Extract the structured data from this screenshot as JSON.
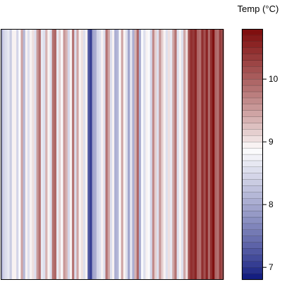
{
  "chart_data": {
    "type": "heatmap",
    "title": "",
    "xlabel": "",
    "ylabel": "",
    "legend_title": "Temp (°C)",
    "legend_placement": "right",
    "color_scale": {
      "min": 6.8,
      "max": 10.8,
      "levels": 40,
      "low_color": "#08127a",
      "mid_color": "#ffffff",
      "high_color": "#7d0a0a",
      "mid_value": 8.9
    },
    "colorbar_ticks": [
      {
        "value": 7,
        "label": "7"
      },
      {
        "value": 8,
        "label": "8"
      },
      {
        "value": 9,
        "label": "9"
      },
      {
        "value": 10,
        "label": "10"
      }
    ],
    "stripe_values": [
      8.0,
      8.4,
      8.6,
      8.7,
      8.3,
      8.9,
      9.0,
      8.4,
      8.8,
      9.4,
      8.2,
      9.0,
      8.6,
      8.9,
      9.1,
      8.5,
      9.6,
      9.8,
      8.7,
      8.5,
      9.3,
      9.0,
      8.6,
      9.8,
      10.0,
      8.7,
      9.2,
      8.8,
      9.6,
      9.3,
      8.4,
      9.0,
      9.8,
      8.6,
      9.4,
      9.0,
      9.1,
      8.5,
      8.9,
      7.2,
      7.0,
      7.9,
      8.1,
      8.4,
      8.6,
      9.0,
      8.5,
      9.8,
      9.4,
      8.6,
      9.0,
      8.0,
      8.2,
      8.8,
      9.5,
      8.9,
      8.6,
      7.9,
      8.7,
      8.0,
      9.3,
      10.0,
      8.1,
      8.8,
      8.5,
      9.0,
      8.8,
      8.4,
      9.7,
      9.2,
      8.6,
      9.6,
      9.2,
      8.9,
      8.6,
      9.1,
      8.7,
      9.5,
      9.8,
      8.6,
      9.0,
      8.5,
      9.4,
      9.1,
      10.2,
      10.4,
      10.3,
      10.6,
      10.0,
      9.8,
      10.5,
      10.2,
      10.6,
      10.0,
      10.4,
      10.8,
      10.0,
      9.8,
      10.3,
      10.2
    ]
  }
}
